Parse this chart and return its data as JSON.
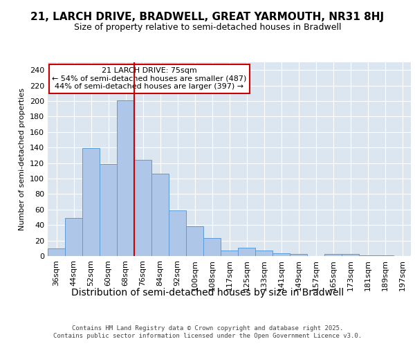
{
  "title1": "21, LARCH DRIVE, BRADWELL, GREAT YARMOUTH, NR31 8HJ",
  "title2": "Size of property relative to semi-detached houses in Bradwell",
  "xlabel": "Distribution of semi-detached houses by size in Bradwell",
  "ylabel": "Number of semi-detached properties",
  "categories": [
    "36sqm",
    "44sqm",
    "52sqm",
    "60sqm",
    "68sqm",
    "76sqm",
    "84sqm",
    "92sqm",
    "100sqm",
    "108sqm",
    "117sqm",
    "125sqm",
    "133sqm",
    "141sqm",
    "149sqm",
    "157sqm",
    "165sqm",
    "173sqm",
    "181sqm",
    "189sqm",
    "197sqm"
  ],
  "values": [
    10,
    49,
    139,
    119,
    201,
    124,
    106,
    59,
    38,
    23,
    7,
    11,
    7,
    4,
    3,
    0,
    3,
    3,
    1,
    1,
    0
  ],
  "bar_color": "#aec6e8",
  "bar_edge_color": "#5b9bd5",
  "vline_color": "#cc0000",
  "annotation_text": "21 LARCH DRIVE: 75sqm\n← 54% of semi-detached houses are smaller (487)\n44% of semi-detached houses are larger (397) →",
  "annotation_box_color": "#cc0000",
  "ylim": [
    0,
    250
  ],
  "yticks": [
    0,
    20,
    40,
    60,
    80,
    100,
    120,
    140,
    160,
    180,
    200,
    220,
    240
  ],
  "bg_color": "#dce6f1",
  "grid_color": "#ffffff",
  "footer": "Contains HM Land Registry data © Crown copyright and database right 2025.\nContains public sector information licensed under the Open Government Licence v3.0.",
  "title1_fontsize": 11,
  "title2_fontsize": 9,
  "xlabel_fontsize": 10,
  "ylabel_fontsize": 8,
  "tick_fontsize": 8,
  "annotation_fontsize": 8,
  "footer_fontsize": 6.5
}
